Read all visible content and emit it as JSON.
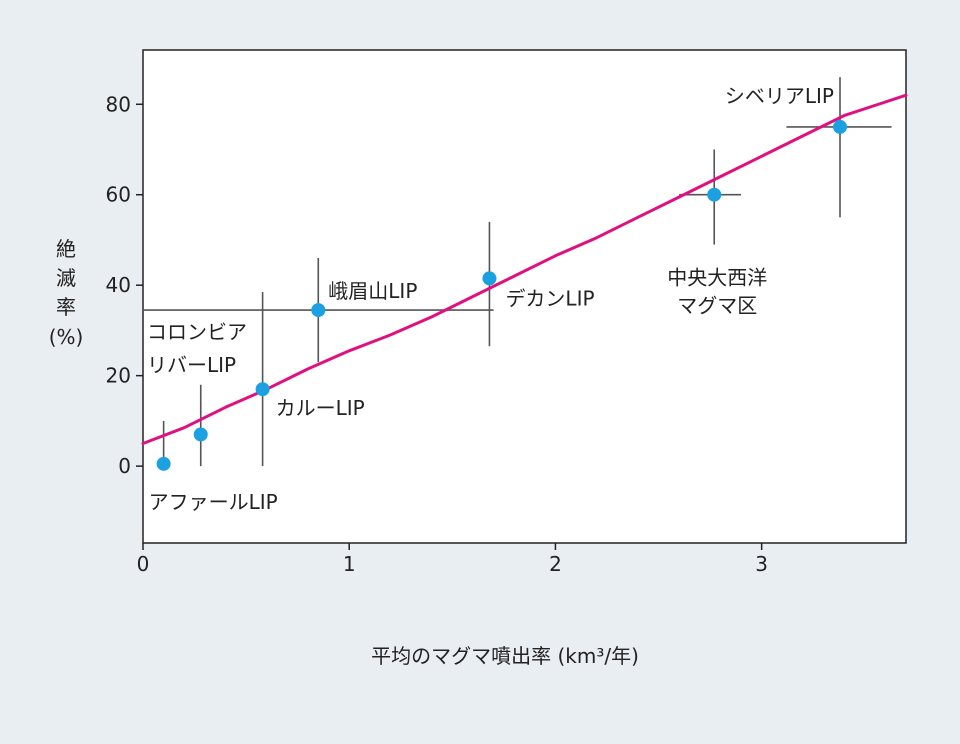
{
  "chart_data": {
    "type": "scatter",
    "xlabel": "平均のマグマ噴出率 (km³/年)",
    "ylabel_lines": [
      "絶",
      "滅",
      "率",
      "(%)"
    ],
    "xlim": [
      0,
      3.7
    ],
    "ylim": [
      -17,
      92
    ],
    "x_ticks": [
      0,
      1,
      2,
      3
    ],
    "y_ticks": [
      0,
      20,
      40,
      60,
      80
    ],
    "grid": false,
    "colors": {
      "background": "#e9eef3",
      "plot_area": "#ffffff",
      "point": "#1ba1e2",
      "trend": "#e0117f",
      "error_bar": "#555555",
      "axis": "#222222"
    },
    "points": [
      {
        "label_lines": [
          "アファールLIP"
        ],
        "x": 0.1,
        "y": 0.5,
        "y_err": [
          0,
          10
        ],
        "x_err": null
      },
      {
        "label_lines": [],
        "x": 0.28,
        "y": 7,
        "y_err": [
          0,
          18
        ],
        "x_err": null
      },
      {
        "label_lines": [
          "カルーLIP"
        ],
        "x": 0.58,
        "y": 17,
        "y_err": [
          0,
          38.5
        ],
        "x_err": null
      },
      {
        "label_lines": [
          "峨眉山LIP"
        ],
        "x": 0.85,
        "y": 34.5,
        "y_err": [
          23,
          46
        ],
        "x_err": null
      },
      {
        "label_lines": [
          "デカンLIP"
        ],
        "x": 1.68,
        "y": 41.5,
        "y_err": [
          26.5,
          54
        ],
        "x_err": null
      },
      {
        "label_lines": [
          "中央大西洋",
          "マグマ区"
        ],
        "x": 2.77,
        "y": 60,
        "y_err": [
          49,
          70
        ],
        "x_err": [
          2.6,
          2.9
        ]
      },
      {
        "label_lines": [
          "シベリアLIP"
        ],
        "x": 3.38,
        "y": 75,
        "y_err": [
          55,
          86
        ],
        "x_err": [
          3.12,
          3.63
        ]
      }
    ],
    "reference_line": {
      "label_lines": [
        "コロンビア",
        "リバーLIP"
      ],
      "x_range": [
        0,
        1.7
      ],
      "y": 34.5
    },
    "trend_line": {
      "x": [
        0,
        0.2,
        0.4,
        0.6,
        0.8,
        1.0,
        1.2,
        1.4,
        1.6,
        1.8,
        2.0,
        2.2,
        2.4,
        2.6,
        2.8,
        3.0,
        3.2,
        3.4,
        3.6,
        3.7
      ],
      "y": [
        5,
        8.5,
        13,
        17,
        21.5,
        25.5,
        29,
        33,
        37.5,
        42,
        46.5,
        50.5,
        55,
        59.5,
        64,
        68.5,
        73,
        77.5,
        80.5,
        82
      ]
    }
  }
}
